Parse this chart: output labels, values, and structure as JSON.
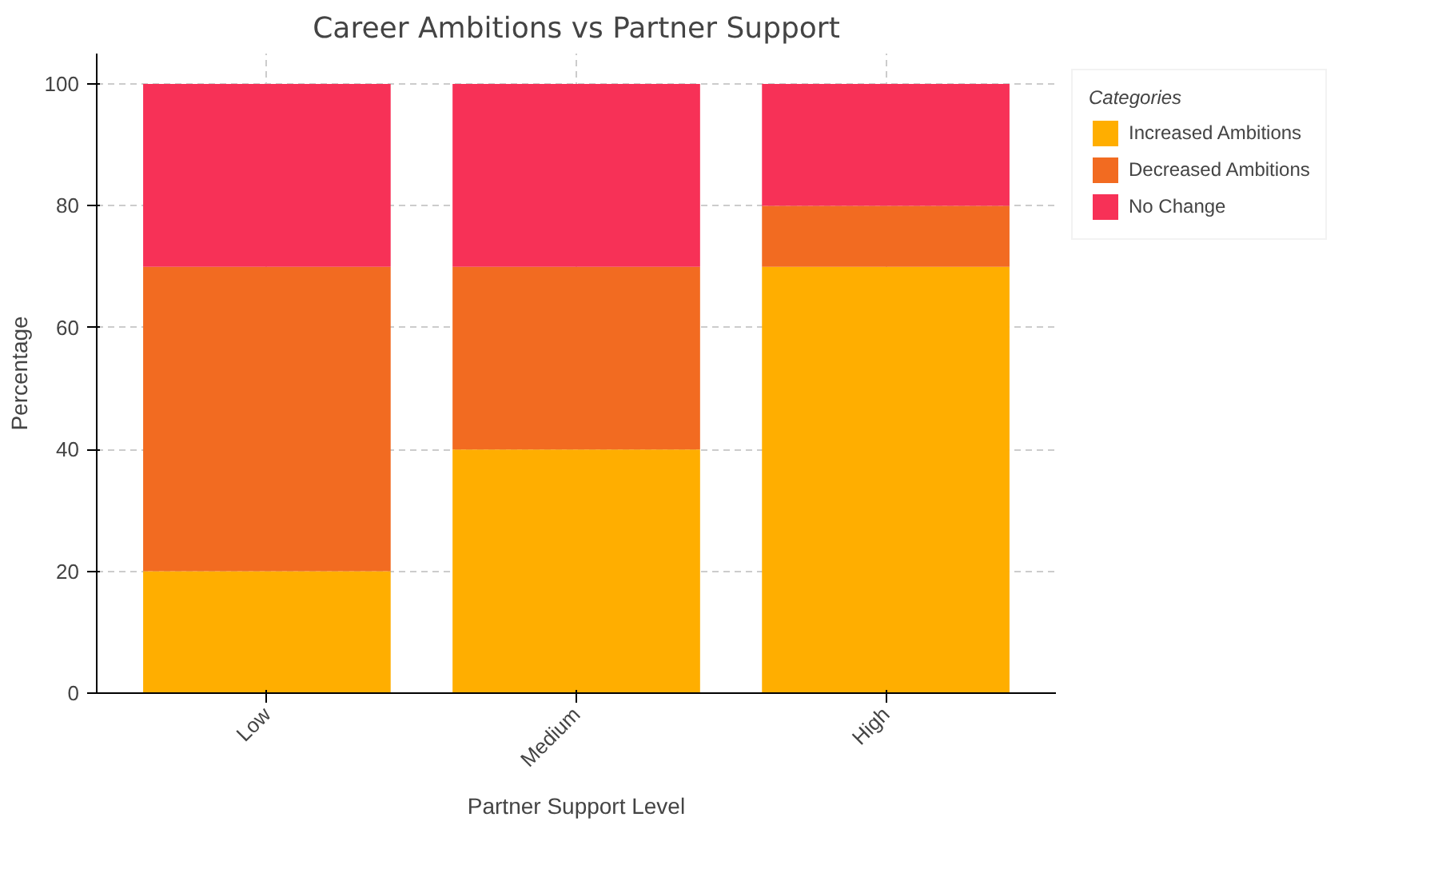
{
  "chart_data": {
    "type": "bar",
    "title": "Career Ambitions vs Partner Support",
    "xlabel": "Partner Support Level",
    "ylabel": "Percentage",
    "legend_title": "Categories",
    "categories": [
      "Low",
      "Medium",
      "High"
    ],
    "series": [
      {
        "name": "Increased Ambitions",
        "color": "#ffae00",
        "values": [
          20,
          40,
          70
        ]
      },
      {
        "name": "Decreased Ambitions",
        "color": "#f26b21",
        "values": [
          50,
          30,
          10
        ]
      },
      {
        "name": "No Change",
        "color": "#f73157",
        "values": [
          30,
          30,
          20
        ]
      }
    ],
    "stacked": true,
    "ylim": [
      0,
      105
    ],
    "yticks": [
      0,
      20,
      40,
      60,
      80,
      100
    ],
    "grid": true,
    "legend": "top right"
  }
}
